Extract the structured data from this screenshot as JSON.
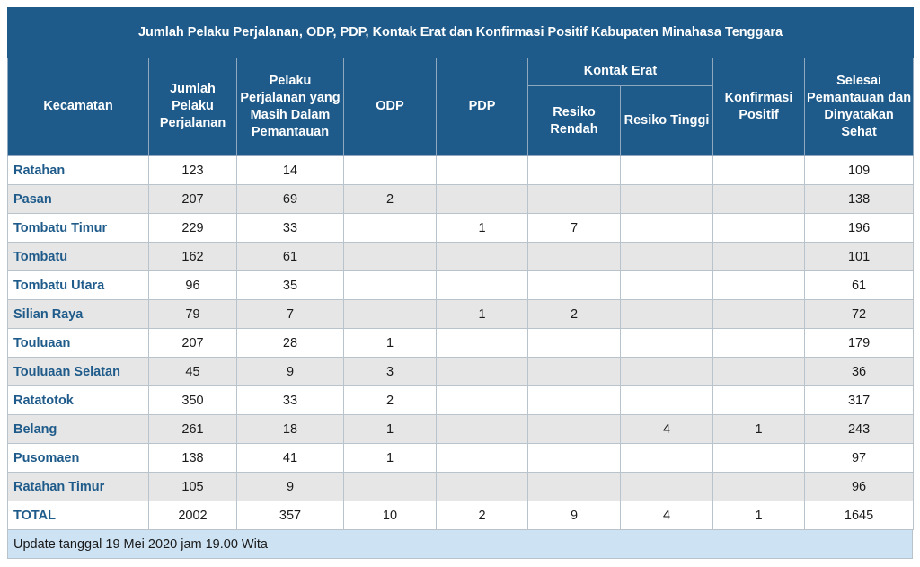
{
  "title": "Jumlah Pelaku Perjalanan, ODP, PDP, Kontak Erat dan Konfirmasi Positif Kabupaten Minahasa Tenggara",
  "headers": {
    "kecamatan": "Kecamatan",
    "jumlah": "Jumlah Pelaku Perjalanan",
    "pemantauan": "Pelaku Perjalanan yang Masih Dalam Pemantauan",
    "odp": "ODP",
    "pdp": "PDP",
    "kontak_erat": "Kontak Erat",
    "resiko_rendah": "Resiko Rendah",
    "resiko_tinggi": "Resiko Tinggi",
    "konfirmasi": "Konfirmasi Positif",
    "selesai": "Selesai Pemantauan dan Dinyatakan Sehat"
  },
  "rows": [
    {
      "kecamatan": "Ratahan",
      "jumlah": "123",
      "pemantauan": "14",
      "odp": "",
      "pdp": "",
      "rendah": "",
      "tinggi": "",
      "konfirmasi": "",
      "selesai": "109"
    },
    {
      "kecamatan": "Pasan",
      "jumlah": "207",
      "pemantauan": "69",
      "odp": "2",
      "pdp": "",
      "rendah": "",
      "tinggi": "",
      "konfirmasi": "",
      "selesai": "138"
    },
    {
      "kecamatan": "Tombatu Timur",
      "jumlah": "229",
      "pemantauan": "33",
      "odp": "",
      "pdp": "1",
      "rendah": "7",
      "tinggi": "",
      "konfirmasi": "",
      "selesai": "196"
    },
    {
      "kecamatan": "Tombatu",
      "jumlah": "162",
      "pemantauan": "61",
      "odp": "",
      "pdp": "",
      "rendah": "",
      "tinggi": "",
      "konfirmasi": "",
      "selesai": "101"
    },
    {
      "kecamatan": "Tombatu Utara",
      "jumlah": "96",
      "pemantauan": "35",
      "odp": "",
      "pdp": "",
      "rendah": "",
      "tinggi": "",
      "konfirmasi": "",
      "selesai": "61"
    },
    {
      "kecamatan": "Silian Raya",
      "jumlah": "79",
      "pemantauan": "7",
      "odp": "",
      "pdp": "1",
      "rendah": "2",
      "tinggi": "",
      "konfirmasi": "",
      "selesai": "72"
    },
    {
      "kecamatan": "Touluaan",
      "jumlah": "207",
      "pemantauan": "28",
      "odp": "1",
      "pdp": "",
      "rendah": "",
      "tinggi": "",
      "konfirmasi": "",
      "selesai": "179"
    },
    {
      "kecamatan": "Touluaan Selatan",
      "jumlah": "45",
      "pemantauan": "9",
      "odp": "3",
      "pdp": "",
      "rendah": "",
      "tinggi": "",
      "konfirmasi": "",
      "selesai": "36"
    },
    {
      "kecamatan": "Ratatotok",
      "jumlah": "350",
      "pemantauan": "33",
      "odp": "2",
      "pdp": "",
      "rendah": "",
      "tinggi": "",
      "konfirmasi": "",
      "selesai": "317"
    },
    {
      "kecamatan": "Belang",
      "jumlah": "261",
      "pemantauan": "18",
      "odp": "1",
      "pdp": "",
      "rendah": "",
      "tinggi": "4",
      "konfirmasi": "1",
      "selesai": "243"
    },
    {
      "kecamatan": "Pusomaen",
      "jumlah": "138",
      "pemantauan": "41",
      "odp": "1",
      "pdp": "",
      "rendah": "",
      "tinggi": "",
      "konfirmasi": "",
      "selesai": "97"
    },
    {
      "kecamatan": "Ratahan Timur",
      "jumlah": "105",
      "pemantauan": "9",
      "odp": "",
      "pdp": "",
      "rendah": "",
      "tinggi": "",
      "konfirmasi": "",
      "selesai": "96"
    }
  ],
  "total": {
    "kecamatan": "TOTAL",
    "jumlah": "2002",
    "pemantauan": "357",
    "odp": "10",
    "pdp": "2",
    "rendah": "9",
    "tinggi": "4",
    "konfirmasi": "1",
    "selesai": "1645"
  },
  "footer": "Update tanggal 19 Mei 2020 jam 19.00 Wita",
  "colors": {
    "header_bg": "#1f5b8a",
    "name_text": "#1f5b8a",
    "alt_row": "#e6e6e6",
    "footer_bg": "#cde3f4"
  }
}
